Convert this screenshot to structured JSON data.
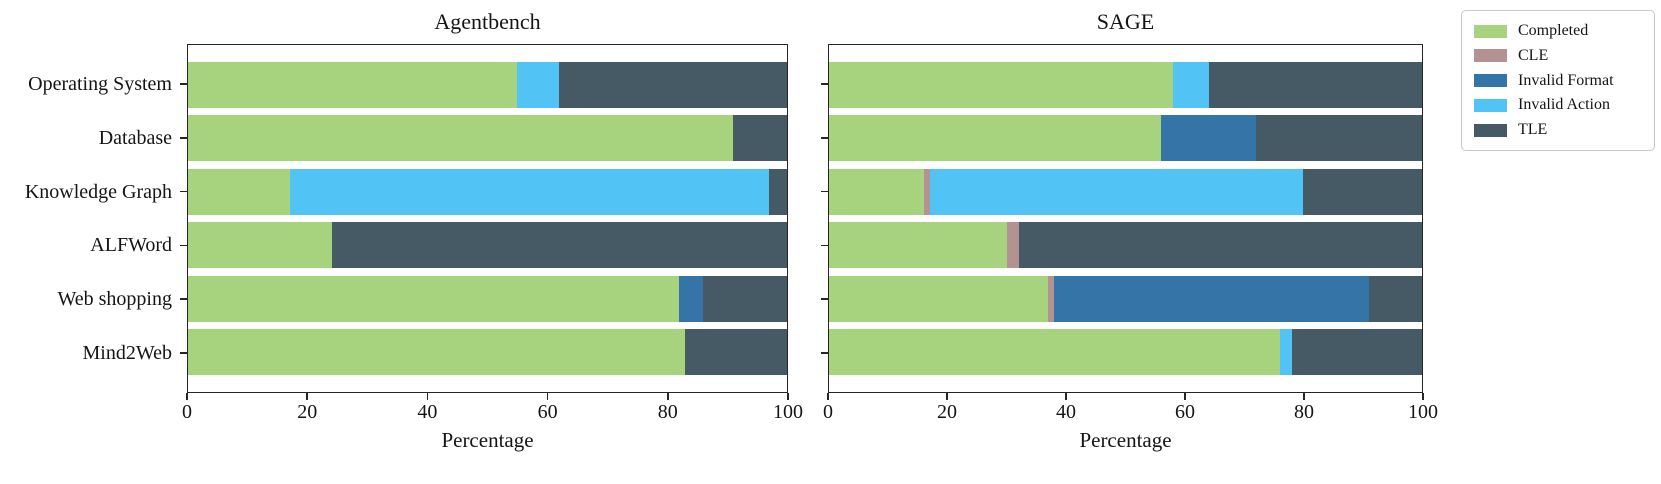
{
  "legend": {
    "entries": [
      {
        "label": "Completed",
        "color": "#a8d37e"
      },
      {
        "label": "CLE",
        "color": "#b29292"
      },
      {
        "label": "Invalid Format",
        "color": "#3474a7"
      },
      {
        "label": "Invalid Action",
        "color": "#52c3f5"
      },
      {
        "label": "TLE",
        "color": "#455a64"
      }
    ]
  },
  "chart_data": [
    {
      "type": "bar",
      "orientation": "horizontal",
      "stacked": true,
      "title": "Agentbench",
      "xlabel": "Percentage",
      "xlim": [
        0,
        100
      ],
      "xticks": [
        0,
        20,
        40,
        60,
        80,
        100
      ],
      "grid": false,
      "categories": [
        "Operating System",
        "Database",
        "Knowledge Graph",
        "ALFWord",
        "Web shopping",
        "Mind2Web"
      ],
      "series": [
        {
          "name": "Completed",
          "values": [
            55,
            91,
            17,
            24,
            82,
            83
          ]
        },
        {
          "name": "CLE",
          "values": [
            0,
            0,
            0,
            0,
            0,
            0
          ]
        },
        {
          "name": "Invalid Format",
          "values": [
            0,
            0,
            0,
            0,
            4,
            0
          ]
        },
        {
          "name": "Invalid Action",
          "values": [
            7,
            0,
            80,
            0,
            0,
            0
          ]
        },
        {
          "name": "TLE",
          "values": [
            38,
            9,
            3,
            76,
            14,
            17
          ]
        }
      ]
    },
    {
      "type": "bar",
      "orientation": "horizontal",
      "stacked": true,
      "title": "SAGE",
      "xlabel": "Percentage",
      "xlim": [
        0,
        100
      ],
      "xticks": [
        0,
        20,
        40,
        60,
        80,
        100
      ],
      "grid": false,
      "categories": [
        "Operating System",
        "Database",
        "Knowledge Graph",
        "ALFWord",
        "Web shopping",
        "Mind2Web"
      ],
      "series": [
        {
          "name": "Completed",
          "values": [
            58,
            56,
            16,
            30,
            37,
            76
          ]
        },
        {
          "name": "CLE",
          "values": [
            0,
            0,
            1,
            2,
            1,
            0
          ]
        },
        {
          "name": "Invalid Format",
          "values": [
            0,
            16,
            0,
            0,
            53,
            0
          ]
        },
        {
          "name": "Invalid Action",
          "values": [
            6,
            0,
            63,
            0,
            0,
            2
          ]
        },
        {
          "name": "TLE",
          "values": [
            36,
            28,
            20,
            68,
            9,
            22
          ]
        }
      ]
    }
  ]
}
